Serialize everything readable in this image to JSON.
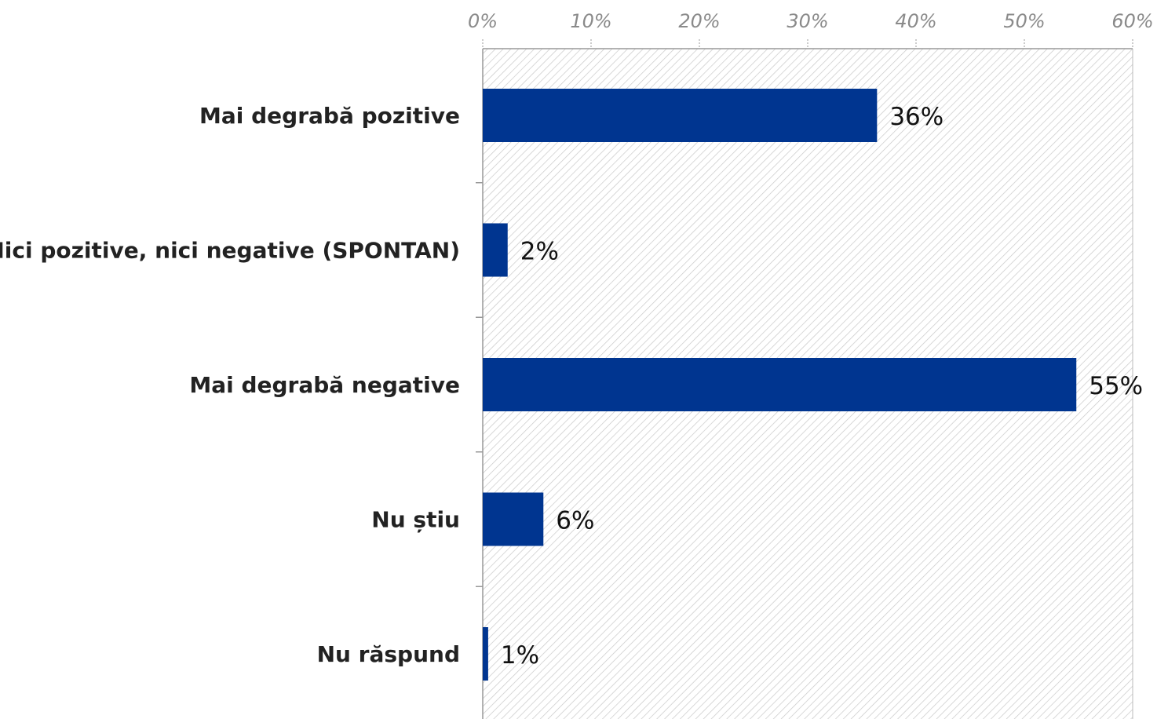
{
  "chart_data": {
    "type": "bar",
    "orientation": "horizontal",
    "title": "",
    "xlabel": "",
    "ylabel": "",
    "categories": [
      "Mai degrabă pozitive",
      "Nici pozitive, nici negative (SPONTAN)",
      "Mai degrabă negative",
      "Nu știu",
      "Nu răspund"
    ],
    "values": [
      36.4,
      2.3,
      54.8,
      5.6,
      0.5
    ],
    "data_labels": [
      "36%",
      "2%",
      "55%",
      "6%",
      "1%"
    ],
    "xlim": [
      0,
      60
    ],
    "x_ticks": [
      0,
      10,
      20,
      30,
      40,
      50,
      60
    ],
    "x_tick_labels": [
      "0%",
      "10%",
      "20%",
      "30%",
      "40%",
      "50%",
      "60%"
    ],
    "x_axis_position": "top",
    "legend": "none",
    "grid": false,
    "plot_background": "diagonal-hatch",
    "colors": {
      "bar": "#003590",
      "hatch": "#c8c8c8",
      "axis": "#999999",
      "tick_text": "#8a8a8a",
      "category_text": "#222222",
      "value_text": "#111111"
    }
  }
}
